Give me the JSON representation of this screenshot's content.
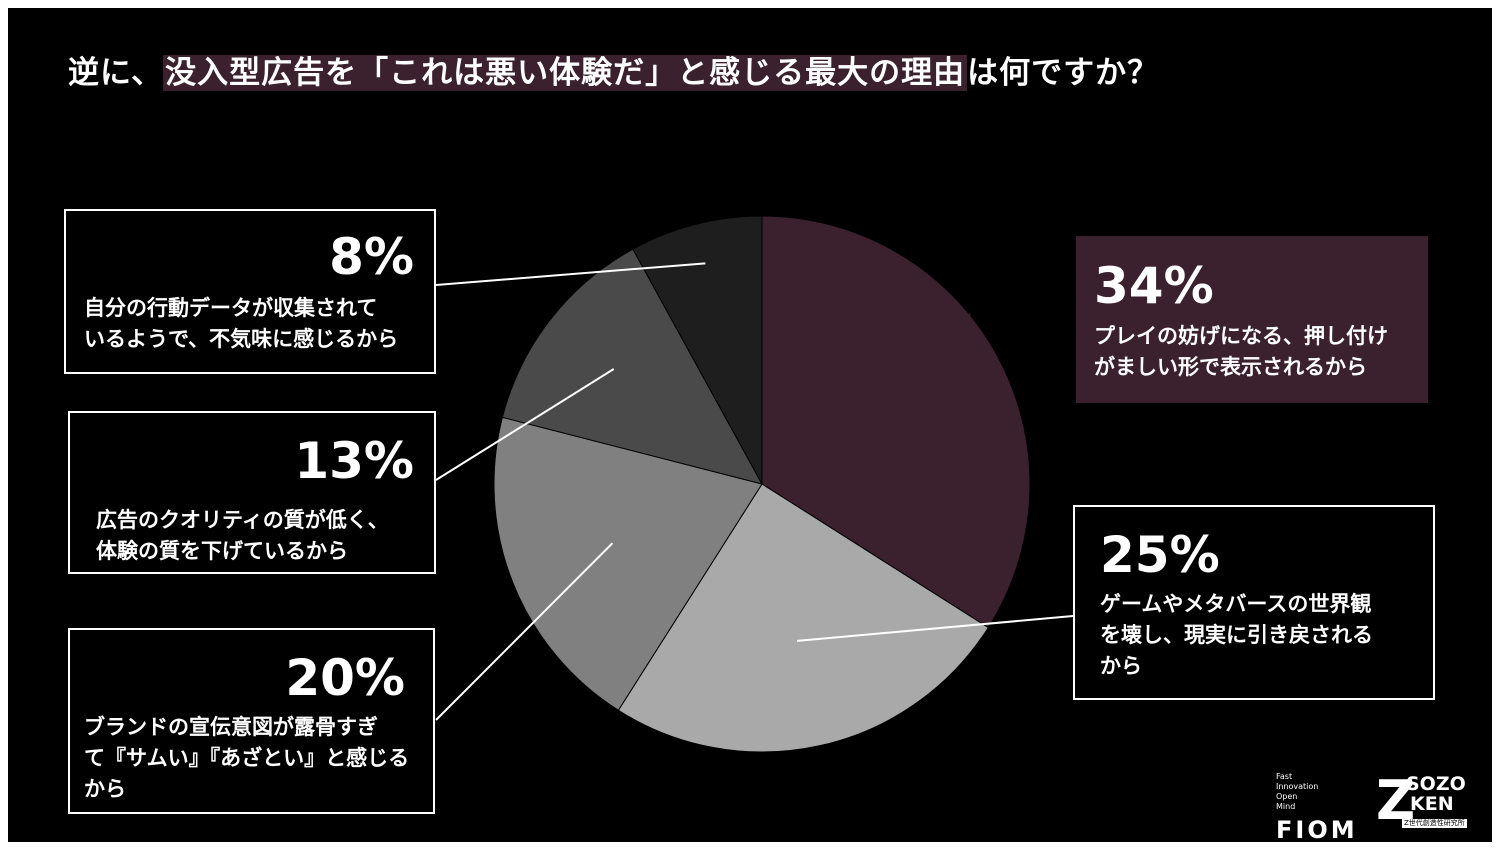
{
  "title": {
    "before": "逆に、",
    "highlight": "没入型広告を「これは悪い体験だ」と感じる最大の理由",
    "after": "は何ですか？"
  },
  "chart_data": {
    "type": "pie",
    "slices": [
      {
        "value": 34,
        "label": "34%",
        "desc": "プレイの妨げになる、押し付け\nがましい形で表示されるから",
        "color": "#3b202d"
      },
      {
        "value": 25,
        "label": "25%",
        "desc": "ゲームやメタバースの世界観\nを壊し、現実に引き戻される\nから",
        "color": "#a9a9a9"
      },
      {
        "value": 20,
        "label": "20%",
        "desc": "ブランドの宣伝意図が露骨すぎ\nて『サムい』『あざとい』と感じる\nから",
        "color": "#808080"
      },
      {
        "value": 13,
        "label": "13%",
        "desc": "広告のクオリティの質が低く、\n体験の質を下げているから",
        "color": "#4a4a4a"
      },
      {
        "value": 8,
        "label": "8%",
        "desc": "自分の行動データが収集されて\nいるようで、不気味に感じるから",
        "color": "#1e1e1e"
      }
    ]
  },
  "logos": {
    "fiom_sub": "Fast\nInnovation\nOpen\nMind",
    "fiom": "FIOM",
    "zken_z": "Z",
    "zken_line1": "SOZO",
    "zken_line2": "KEN",
    "zken_caption": "Z世代創造性研究所"
  }
}
